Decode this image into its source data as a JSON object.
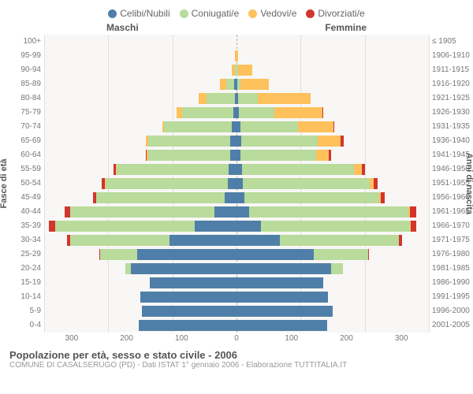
{
  "legend": [
    {
      "label": "Celibi/Nubili",
      "color": "#4f7fa8"
    },
    {
      "label": "Coniugati/e",
      "color": "#b9db9b"
    },
    {
      "label": "Vedovi/e",
      "color": "#ffc15c"
    },
    {
      "label": "Divorziati/e",
      "color": "#d2352c"
    }
  ],
  "header_male": "Maschi",
  "header_female": "Femmine",
  "ylabel_left": "Fasce di età",
  "ylabel_right": "Anni di nascita",
  "xticks": [
    "300",
    "200",
    "100",
    "0",
    "100",
    "200",
    "300"
  ],
  "xmax": 300,
  "colors": {
    "celibi": "#4f7fa8",
    "coniugati": "#b9db9b",
    "vedovi": "#ffc15c",
    "divorziati": "#d2352c",
    "bg": "#f8f7f6",
    "grid": "#e2e0dc"
  },
  "rows": [
    {
      "age": "100+",
      "birth": "≤ 1905",
      "m": [
        0,
        0,
        0,
        0
      ],
      "f": [
        0,
        0,
        0,
        0
      ]
    },
    {
      "age": "95-99",
      "birth": "1906-1910",
      "m": [
        0,
        0,
        2,
        0
      ],
      "f": [
        0,
        0,
        3,
        0
      ]
    },
    {
      "age": "90-94",
      "birth": "1911-1915",
      "m": [
        0,
        2,
        5,
        0
      ],
      "f": [
        0,
        2,
        22,
        0
      ]
    },
    {
      "age": "85-89",
      "birth": "1916-1920",
      "m": [
        4,
        12,
        10,
        0
      ],
      "f": [
        1,
        5,
        45,
        0
      ]
    },
    {
      "age": "80-84",
      "birth": "1921-1925",
      "m": [
        2,
        45,
        12,
        0
      ],
      "f": [
        3,
        30,
        82,
        0
      ]
    },
    {
      "age": "75-79",
      "birth": "1926-1930",
      "m": [
        5,
        80,
        8,
        0
      ],
      "f": [
        4,
        55,
        75,
        1
      ]
    },
    {
      "age": "70-74",
      "birth": "1931-1935",
      "m": [
        8,
        105,
        3,
        0
      ],
      "f": [
        6,
        90,
        55,
        2
      ]
    },
    {
      "age": "65-69",
      "birth": "1936-1940",
      "m": [
        10,
        128,
        3,
        0
      ],
      "f": [
        7,
        120,
        35,
        5
      ]
    },
    {
      "age": "60-64",
      "birth": "1941-1945",
      "m": [
        10,
        128,
        2,
        2
      ],
      "f": [
        6,
        118,
        20,
        4
      ]
    },
    {
      "age": "55-59",
      "birth": "1946-1950",
      "m": [
        12,
        175,
        1,
        4
      ],
      "f": [
        8,
        175,
        12,
        6
      ]
    },
    {
      "age": "50-54",
      "birth": "1951-1955",
      "m": [
        14,
        190,
        1,
        5
      ],
      "f": [
        10,
        198,
        6,
        6
      ]
    },
    {
      "age": "45-49",
      "birth": "1956-1960",
      "m": [
        19,
        200,
        0,
        5
      ],
      "f": [
        12,
        210,
        3,
        6
      ]
    },
    {
      "age": "40-44",
      "birth": "1961-1965",
      "m": [
        35,
        225,
        0,
        8
      ],
      "f": [
        20,
        248,
        2,
        10
      ]
    },
    {
      "age": "35-39",
      "birth": "1966-1970",
      "m": [
        65,
        218,
        0,
        10
      ],
      "f": [
        38,
        233,
        1,
        8
      ]
    },
    {
      "age": "30-34",
      "birth": "1971-1975",
      "m": [
        105,
        155,
        0,
        4
      ],
      "f": [
        68,
        185,
        0,
        5
      ]
    },
    {
      "age": "25-29",
      "birth": "1976-1980",
      "m": [
        155,
        58,
        0,
        1
      ],
      "f": [
        120,
        85,
        0,
        2
      ]
    },
    {
      "age": "20-24",
      "birth": "1981-1985",
      "m": [
        165,
        8,
        0,
        0
      ],
      "f": [
        148,
        18,
        0,
        0
      ]
    },
    {
      "age": "15-19",
      "birth": "1986-1990",
      "m": [
        135,
        0,
        0,
        0
      ],
      "f": [
        135,
        0,
        0,
        0
      ]
    },
    {
      "age": "10-14",
      "birth": "1991-1995",
      "m": [
        150,
        0,
        0,
        0
      ],
      "f": [
        143,
        0,
        0,
        0
      ]
    },
    {
      "age": "5-9",
      "birth": "1996-2000",
      "m": [
        148,
        0,
        0,
        0
      ],
      "f": [
        150,
        0,
        0,
        0
      ]
    },
    {
      "age": "0-4",
      "birth": "2001-2005",
      "m": [
        153,
        0,
        0,
        0
      ],
      "f": [
        142,
        0,
        0,
        0
      ]
    }
  ],
  "footer_title": "Popolazione per età, sesso e stato civile - 2006",
  "footer_sub": "COMUNE DI CASALSERUGO (PD) - Dati ISTAT 1° gennaio 2006 - Elaborazione TUTTITALIA.IT"
}
